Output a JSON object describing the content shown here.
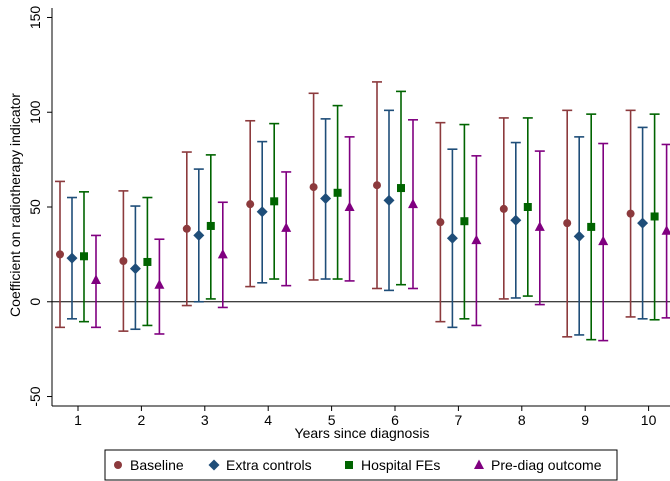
{
  "chart_data": {
    "type": "scatter",
    "subtype": "coefficient plot with confidence intervals",
    "xlabel": "Years since diagnosis",
    "ylabel": "Coefficient on radiotherapy indicator",
    "categories": [
      "1",
      "2",
      "3",
      "4",
      "5",
      "6",
      "7",
      "8",
      "9",
      "10"
    ],
    "x": [
      1,
      2,
      3,
      4,
      5,
      6,
      7,
      8,
      9,
      10
    ],
    "ylim": [
      -55,
      155
    ],
    "yticks": [
      -50,
      0,
      50,
      100,
      150
    ],
    "reference_line_y": 0,
    "grid": false,
    "legend_position": "bottom",
    "series": [
      {
        "name": "Baseline",
        "color": "#8c3a3d",
        "marker": "circle",
        "values": [
          25,
          21.5,
          38.5,
          51.5,
          60.5,
          61.5,
          42,
          49,
          41.5,
          46.5
        ],
        "ci_low": [
          -13.5,
          -15.5,
          -2,
          8,
          11.5,
          7,
          -10.5,
          1.5,
          -18.5,
          -8
        ],
        "ci_high": [
          63.5,
          58.5,
          79,
          95.5,
          110,
          116,
          94.5,
          97,
          101,
          101
        ]
      },
      {
        "name": "Extra controls",
        "color": "#1f4e79",
        "marker": "diamond",
        "values": [
          23,
          17.5,
          35,
          47.5,
          54.5,
          53.5,
          33.5,
          43,
          34.5,
          41.5
        ],
        "ci_low": [
          -9,
          -14.5,
          0,
          10,
          12,
          6,
          -13.5,
          2,
          -17.5,
          -9
        ],
        "ci_high": [
          55,
          50.5,
          70,
          84.5,
          96.5,
          101,
          80.5,
          84,
          87,
          92
        ]
      },
      {
        "name": "Hospital FEs",
        "color": "#006400",
        "marker": "square",
        "values": [
          24,
          21,
          40,
          53,
          57.5,
          60,
          42.5,
          50,
          39.5,
          45
        ],
        "ci_low": [
          -10.5,
          -12.5,
          1.5,
          12,
          12,
          9,
          -9,
          3,
          -20,
          -9.5
        ],
        "ci_high": [
          58,
          55,
          77.5,
          94,
          103.5,
          111,
          93.5,
          97,
          99,
          99
        ]
      },
      {
        "name": "Pre-diag outcome",
        "color": "#800080",
        "marker": "triangle",
        "values": [
          11.5,
          9,
          25,
          39,
          50,
          51.5,
          32.5,
          39.5,
          32,
          37.5
        ],
        "ci_low": [
          -13.5,
          -17,
          -3,
          8.5,
          11,
          7,
          -12.5,
          -1.5,
          -20.5,
          -8.5
        ],
        "ci_high": [
          35,
          33,
          52.5,
          68.5,
          87,
          96,
          77,
          79.5,
          83.5,
          83
        ]
      }
    ]
  }
}
